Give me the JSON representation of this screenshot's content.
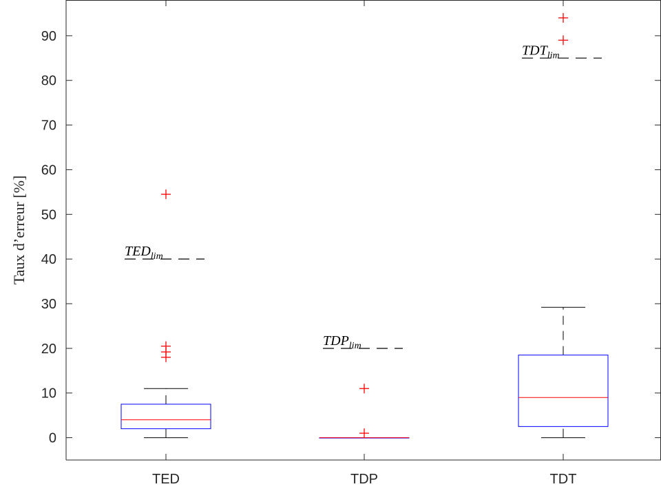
{
  "chart_data": {
    "type": "box",
    "ylabel": "Taux d’erreur [%]",
    "xlabel": "",
    "ylim": [
      -5,
      98
    ],
    "yticks": [
      0,
      10,
      20,
      30,
      40,
      50,
      60,
      70,
      80,
      90
    ],
    "categories": [
      "TED",
      "TDP",
      "TDT"
    ],
    "boxes": [
      {
        "category": "TED",
        "min": 0,
        "q1": 2,
        "median": 4,
        "q3": 7.5,
        "max": 11,
        "outliers": [
          54.5,
          20.5,
          19.2,
          18
        ]
      },
      {
        "category": "TDP",
        "min": 0,
        "q1": 0,
        "median": 0,
        "q3": 0,
        "max": 0,
        "outliers": [
          11,
          1
        ]
      },
      {
        "category": "TDT",
        "min": 0,
        "q1": 2.5,
        "median": 9,
        "q3": 18.5,
        "max": 29.2,
        "outliers": [
          94,
          89
        ]
      }
    ],
    "limits": [
      {
        "category": "TED",
        "value": 40,
        "label": "TED",
        "sub": "lim"
      },
      {
        "category": "TDP",
        "value": 20,
        "label": "TDP",
        "sub": "lim"
      },
      {
        "category": "TDT",
        "value": 85,
        "label": "TDT",
        "sub": "lim"
      }
    ],
    "colors": {
      "box": "#0000ff",
      "median": "#ff0000",
      "outlier": "#ff0000",
      "whisker": "#000000",
      "axis": "#262626"
    }
  }
}
